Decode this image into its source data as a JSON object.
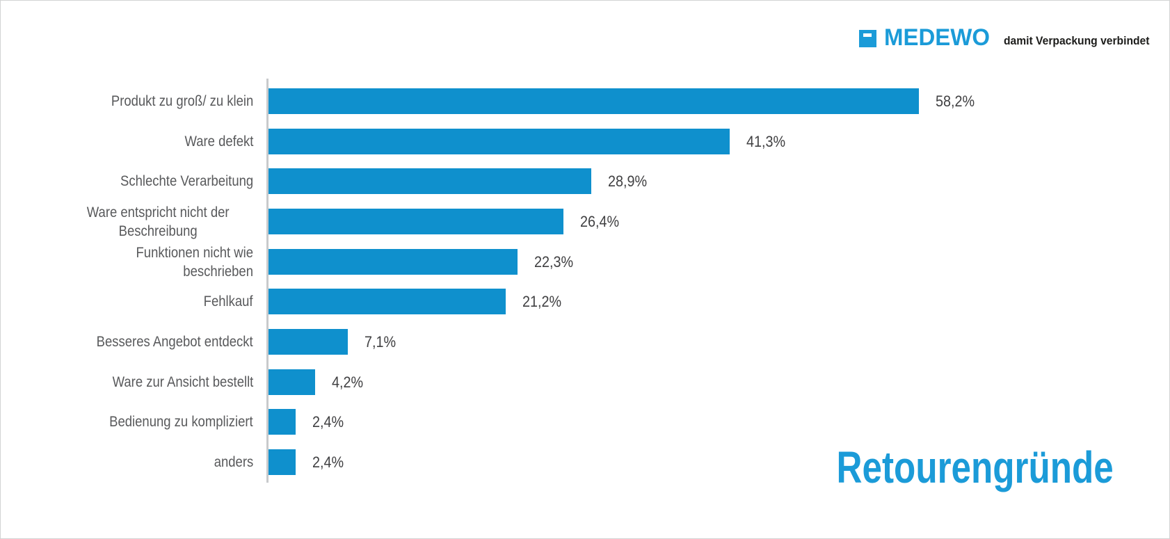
{
  "logo": {
    "brand": "MEDEWO",
    "tagline": "damit Verpackung verbindet"
  },
  "title": "Retourengründe",
  "colors": {
    "bar": "#0f90cd",
    "brand_blue": "#1b9bd8",
    "label_text": "#58595b",
    "value_text": "#404042",
    "axis_line": "#c8cacc",
    "tagline_text": "#1d1d1b"
  },
  "chart_data": {
    "type": "bar",
    "orientation": "horizontal",
    "title": "Retourengründe",
    "xlabel": "",
    "ylabel": "",
    "xlim": [
      0,
      60
    ],
    "grid": false,
    "legend": false,
    "bar_color": "#0f90cd",
    "categories": [
      "Produkt zu groß/ zu klein",
      "Ware defekt",
      "Schlechte Verarbeitung",
      "Ware entspricht nicht der Beschreibung",
      "Funktionen nicht wie beschrieben",
      "Fehlkauf",
      "Besseres Angebot entdeckt",
      "Ware zur Ansicht bestellt",
      "Bedienung zu kompliziert",
      "anders"
    ],
    "values": [
      58.2,
      41.3,
      28.9,
      26.4,
      22.3,
      21.2,
      7.1,
      4.2,
      2.4,
      2.4
    ],
    "value_labels": [
      "58,2%",
      "41,3%",
      "28,9%",
      "26,4%",
      "22,3%",
      "21,2%",
      "7,1%",
      "4,2%",
      "2,4%",
      "2,4%"
    ]
  }
}
